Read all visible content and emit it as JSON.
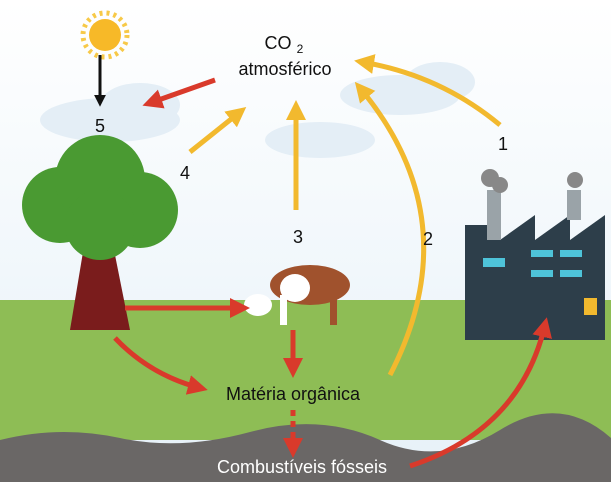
{
  "labels": {
    "co2": "CO",
    "co2_subscript": "2",
    "co2_line2": "atmosférico",
    "organic_matter": "Matéria orgânica",
    "fossil_fuels": "Combustíveis fósseis"
  },
  "steps": [
    "1",
    "2",
    "3",
    "4",
    "5"
  ]
}
